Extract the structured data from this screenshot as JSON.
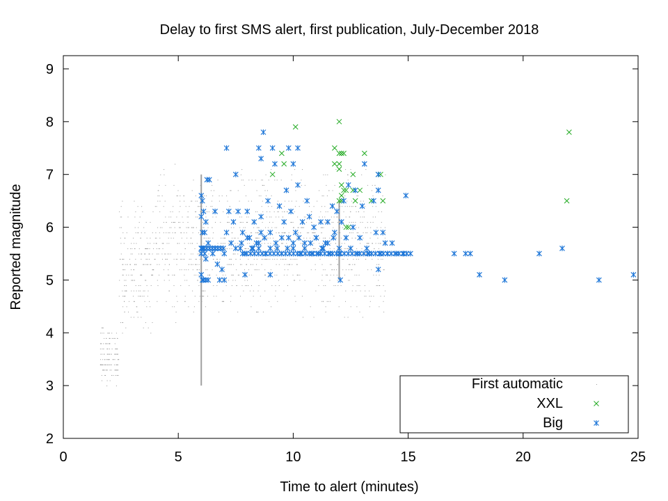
{
  "chart_data": {
    "type": "scatter",
    "title": "Delay to first SMS alert, first publication, July-December 2018",
    "xlabel": "Time to alert (minutes)",
    "ylabel": "Reported magnitude",
    "xlim": [
      0,
      25
    ],
    "ylim": [
      2,
      9.25
    ],
    "xticks": [
      0,
      5,
      10,
      15,
      20,
      25
    ],
    "yticks": [
      2,
      3,
      4,
      5,
      6,
      7,
      8,
      9
    ],
    "grid": false,
    "legend_position": "bottom-right",
    "threshold_lines": [
      {
        "x": 6,
        "y_from": 3,
        "y_to": 7
      },
      {
        "x": 12,
        "y_from": 5,
        "y_to": 6.5
      }
    ],
    "series": [
      {
        "name": "First automatic",
        "marker": "dot",
        "color": "#9a9a9a",
        "note_density": "many small dots covering x 1.6-14, magnitudes 2.7-7.5"
      },
      {
        "name": "XXL",
        "marker": "x",
        "color": "#22aa22",
        "points": [
          [
            10.1,
            7.9
          ],
          [
            9.5,
            7.4
          ],
          [
            11.8,
            7.5
          ],
          [
            9.1,
            7.0
          ],
          [
            9.6,
            7.2
          ],
          [
            11.8,
            7.2
          ],
          [
            12.0,
            8.0
          ],
          [
            12.0,
            7.4
          ],
          [
            12.1,
            7.4
          ],
          [
            12.2,
            7.4
          ],
          [
            12.0,
            7.2
          ],
          [
            12.0,
            7.1
          ],
          [
            12.1,
            6.8
          ],
          [
            12.2,
            6.7
          ],
          [
            12.1,
            6.6
          ],
          [
            12.3,
            6.7
          ],
          [
            12.0,
            6.5
          ],
          [
            12.1,
            6.5
          ],
          [
            12.3,
            6.0
          ],
          [
            12.4,
            6.0
          ],
          [
            12.6,
            6.7
          ],
          [
            12.7,
            6.5
          ],
          [
            12.6,
            7.0
          ],
          [
            12.9,
            6.7
          ],
          [
            13.1,
            7.4
          ],
          [
            13.4,
            6.5
          ],
          [
            13.7,
            7.0
          ],
          [
            13.8,
            7.0
          ],
          [
            13.9,
            6.5
          ],
          [
            22.0,
            7.8
          ],
          [
            21.9,
            6.5
          ]
        ]
      },
      {
        "name": "Big",
        "marker": "star",
        "color": "#1f77d8",
        "points": [
          [
            6.0,
            6.6
          ],
          [
            6.05,
            6.5
          ],
          [
            6.1,
            6.3
          ],
          [
            6.0,
            6.2
          ],
          [
            6.05,
            5.9
          ],
          [
            6.15,
            5.9
          ],
          [
            6.0,
            5.6
          ],
          [
            6.05,
            5.6
          ],
          [
            6.1,
            5.6
          ],
          [
            6.15,
            5.5
          ],
          [
            6.0,
            5.5
          ],
          [
            6.2,
            5.4
          ],
          [
            6.0,
            5.1
          ],
          [
            6.05,
            5.0
          ],
          [
            6.1,
            5.0
          ],
          [
            6.2,
            5.0
          ],
          [
            6.3,
            5.0
          ],
          [
            6.2,
            6.1
          ],
          [
            6.25,
            6.9
          ],
          [
            6.35,
            6.9
          ],
          [
            6.3,
            5.7
          ],
          [
            6.5,
            5.5
          ],
          [
            6.6,
            5.6
          ],
          [
            6.7,
            5.3
          ],
          [
            6.8,
            5.0
          ],
          [
            6.9,
            5.2
          ],
          [
            7.0,
            5.0
          ],
          [
            6.6,
            6.3
          ],
          [
            7.0,
            5.5
          ],
          [
            7.1,
            5.9
          ],
          [
            7.2,
            6.3
          ],
          [
            7.1,
            7.5
          ],
          [
            7.3,
            5.7
          ],
          [
            7.4,
            6.1
          ],
          [
            7.5,
            7.0
          ],
          [
            7.6,
            6.3
          ],
          [
            7.7,
            5.6
          ],
          [
            7.8,
            5.9
          ],
          [
            7.9,
            5.5
          ],
          [
            7.9,
            5.1
          ],
          [
            8.0,
            6.3
          ],
          [
            8.1,
            5.8
          ],
          [
            8.2,
            5.6
          ],
          [
            8.3,
            6.1
          ],
          [
            8.4,
            5.7
          ],
          [
            8.5,
            5.6
          ],
          [
            8.5,
            7.5
          ],
          [
            8.6,
            7.3
          ],
          [
            8.6,
            5.9
          ],
          [
            8.7,
            7.8
          ],
          [
            8.6,
            6.2
          ],
          [
            8.8,
            5.5
          ],
          [
            8.9,
            6.5
          ],
          [
            9.0,
            5.1
          ],
          [
            9.1,
            7.5
          ],
          [
            9.2,
            7.2
          ],
          [
            9.0,
            5.9
          ],
          [
            9.3,
            5.6
          ],
          [
            9.4,
            6.4
          ],
          [
            9.5,
            5.5
          ],
          [
            9.6,
            6.1
          ],
          [
            9.7,
            6.7
          ],
          [
            9.8,
            5.8
          ],
          [
            9.8,
            7.5
          ],
          [
            9.9,
            6.3
          ],
          [
            10.0,
            5.6
          ],
          [
            10.0,
            7.2
          ],
          [
            10.1,
            5.9
          ],
          [
            10.2,
            7.5
          ],
          [
            10.2,
            6.8
          ],
          [
            10.3,
            5.5
          ],
          [
            10.4,
            6.1
          ],
          [
            10.5,
            5.7
          ],
          [
            10.6,
            6.5
          ],
          [
            10.7,
            6.2
          ],
          [
            10.8,
            5.5
          ],
          [
            10.9,
            6.0
          ],
          [
            11.0,
            5.8
          ],
          [
            11.1,
            5.5
          ],
          [
            11.2,
            6.1
          ],
          [
            11.3,
            5.6
          ],
          [
            11.4,
            5.7
          ],
          [
            11.5,
            6.1
          ],
          [
            11.6,
            5.5
          ],
          [
            11.7,
            6.4
          ],
          [
            11.8,
            5.9
          ],
          [
            11.9,
            6.3
          ],
          [
            12.0,
            5.5
          ],
          [
            12.05,
            5.0
          ],
          [
            12.1,
            6.1
          ],
          [
            12.2,
            6.5
          ],
          [
            12.3,
            5.8
          ],
          [
            12.4,
            6.8
          ],
          [
            12.5,
            5.6
          ],
          [
            12.6,
            6.0
          ],
          [
            12.7,
            6.7
          ],
          [
            12.8,
            5.5
          ],
          [
            12.9,
            5.8
          ],
          [
            13.0,
            6.4
          ],
          [
            13.1,
            7.2
          ],
          [
            13.2,
            5.6
          ],
          [
            13.3,
            5.5
          ],
          [
            13.5,
            6.5
          ],
          [
            13.6,
            5.9
          ],
          [
            13.7,
            7.0
          ],
          [
            13.7,
            6.7
          ],
          [
            13.7,
            5.2
          ],
          [
            13.8,
            5.5
          ],
          [
            13.9,
            5.9
          ],
          [
            14.0,
            5.7
          ],
          [
            14.1,
            5.5
          ],
          [
            14.3,
            5.7
          ],
          [
            14.5,
            5.5
          ],
          [
            14.8,
            5.5
          ],
          [
            15.1,
            5.5
          ],
          [
            14.9,
            6.6
          ],
          [
            17.0,
            5.5
          ],
          [
            17.5,
            5.5
          ],
          [
            17.7,
            5.5
          ],
          [
            18.1,
            5.1
          ],
          [
            19.2,
            5.0
          ],
          [
            20.7,
            5.5
          ],
          [
            21.7,
            5.6
          ],
          [
            23.3,
            5.0
          ],
          [
            24.8,
            5.1
          ]
        ]
      }
    ]
  }
}
